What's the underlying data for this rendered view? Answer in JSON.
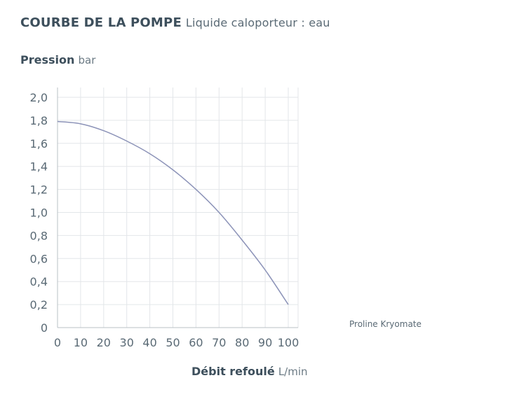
{
  "header": {
    "title": "COURBE DE LA POMPE",
    "subtitle": "Liquide caloporteur : eau"
  },
  "chart_data": {
    "type": "line",
    "ylabel": "Pression",
    "yunit": "bar",
    "xlabel": "Débit refoulé",
    "xunit": "L/min",
    "xlim": [
      0,
      100
    ],
    "ylim": [
      0,
      2.0
    ],
    "xticks": [
      "0",
      "10",
      "20",
      "30",
      "40",
      "50",
      "60",
      "70",
      "80",
      "90",
      "100"
    ],
    "yticks": [
      "0",
      "0,2",
      "0,4",
      "0,6",
      "0,8",
      "1,0",
      "1,2",
      "1,4",
      "1,6",
      "1,8",
      "2,0"
    ],
    "grid": true,
    "legend_position": "right",
    "series": [
      {
        "name": "Proline Kryomate",
        "color": "#8c93b8",
        "x": [
          0,
          10,
          20,
          30,
          40,
          50,
          60,
          70,
          80,
          90,
          100
        ],
        "y": [
          1.79,
          1.77,
          1.71,
          1.62,
          1.51,
          1.37,
          1.2,
          1.0,
          0.76,
          0.5,
          0.2
        ]
      }
    ]
  }
}
